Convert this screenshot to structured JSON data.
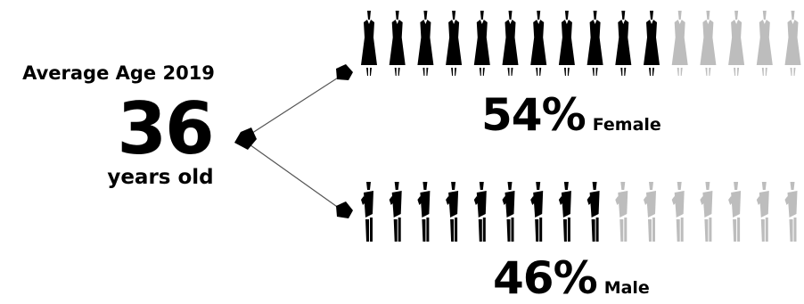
{
  "chart_data": {
    "type": "pictogram",
    "title": "Average Age 2019",
    "average_age": {
      "value": "36",
      "unit": "years old"
    },
    "series": [
      {
        "name": "Female",
        "percent_label": "54%",
        "share": 54,
        "icons_total": 16,
        "icons_filled": 11
      },
      {
        "name": "Male",
        "percent_label": "46%",
        "share": 46,
        "icons_total": 16,
        "icons_filled": 9
      }
    ],
    "colors": {
      "filled": "#000000",
      "empty": "#bdbdbd",
      "connector": "#555555"
    }
  }
}
